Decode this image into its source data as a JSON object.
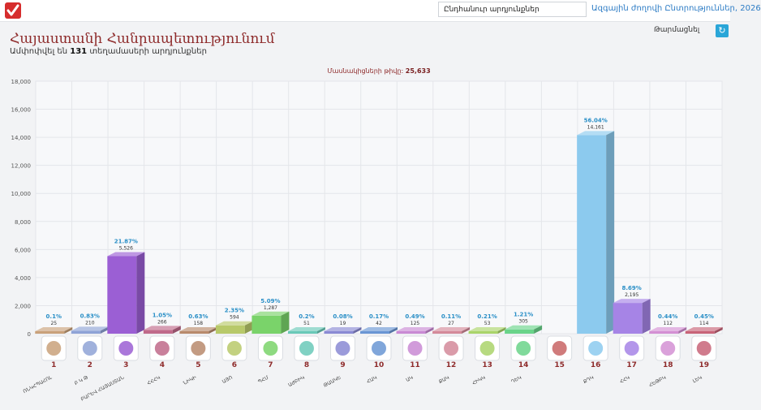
{
  "header": {
    "search_value": "Ընդհանուր արդյունքներ",
    "election_link": "Ազգային ժողովի Ընտրություններ, 2026"
  },
  "page": {
    "title": "Հայաստանի Հանրապետությունում",
    "subtitle_prefix": "Ամփոփվել են",
    "subtitle_count": "131",
    "subtitle_suffix": "տեղամասերի արդյունքներ",
    "refresh_label": "Թարմացնել"
  },
  "colors": {
    "title": "#8e2b2b",
    "accent": "#2aa6d8",
    "percent_label": "#2a8fc7"
  },
  "chart_data": {
    "type": "bar",
    "annotation_label": "Մասնակիցների թիվը:",
    "annotation_value": "25,633",
    "ylim": [
      0,
      18000
    ],
    "yticks": [
      "0",
      "2,000",
      "4,000",
      "6,000",
      "8,000",
      "10,000",
      "12,000",
      "14,000",
      "16,000",
      "18,000"
    ],
    "grid": true,
    "bar_style": "3d",
    "categories": [
      "1",
      "2",
      "3",
      "4",
      "5",
      "6",
      "7",
      "8",
      "9",
      "10",
      "11",
      "12",
      "13",
      "14",
      "15",
      "16",
      "17",
      "18",
      "19"
    ],
    "values": [
      25,
      210,
      5526,
      266,
      158,
      594,
      1287,
      51,
      19,
      42,
      125,
      27,
      53,
      305,
      0,
      14161,
      2195,
      112,
      114
    ],
    "value_labels": [
      "25",
      "210",
      "5,526",
      "266",
      "158",
      "594",
      "1,287",
      "51",
      "19",
      "42",
      "125",
      "27",
      "53",
      "305",
      "",
      "14,161",
      "2,195",
      "112",
      "114"
    ],
    "percent_labels": [
      "0.1%",
      "0.83%",
      "21.87%",
      "1.05%",
      "0.63%",
      "2.35%",
      "5.09%",
      "0.2%",
      "0.08%",
      "0.17%",
      "0.49%",
      "0.11%",
      "0.21%",
      "1.21%",
      "",
      "56.04%",
      "8.69%",
      "0.44%",
      "0.45%"
    ],
    "bar_colors": [
      "#c9a17a",
      "#8fa3d6",
      "#9b5fd4",
      "#c06a8a",
      "#b88a6c",
      "#b8c96a",
      "#7ad36a",
      "#6ac9b8",
      "#8a8ad4",
      "#6a96d4",
      "#c98ad4",
      "#d48a9a",
      "#aad46a",
      "#6ad48a",
      "#c86464",
      "#8ccaee",
      "#a684e6",
      "#d490d4",
      "#c86478"
    ],
    "party_abbr": [
      "ՌՆԿՀՊԱՀՈԼ",
      "Բ Կ Թ",
      "ԲԱՐԵՎ ՀԱՅԱՍՏԱՆ",
      "ՀՀՀԿ",
      "ՆԻԿԻ",
      "ԱՅՈ",
      "ՊՀՄ",
      "ԱԺԲԻԿ",
      "ԹԱԱԿԵ",
      "ՀԱԿ",
      "ԱԿ",
      "ՔԱԿ",
      "ՀԻԿԿ",
      "ԴԵԿ",
      "",
      "ՔԴԿ",
      "ՀՀԿ",
      "ՀԵԹԲԿ",
      "ԼԵԿ"
    ]
  }
}
